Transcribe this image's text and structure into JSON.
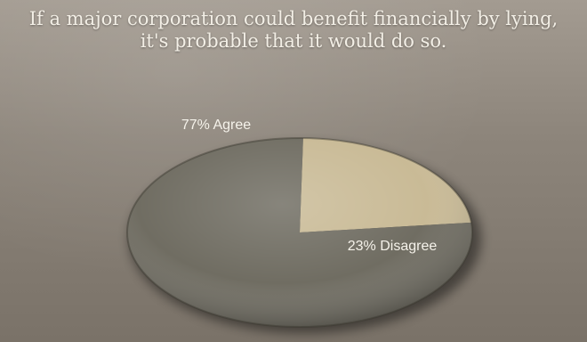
{
  "chart_data": {
    "type": "pie",
    "title": [
      "If a major corporation could benefit financially by lying,",
      "it's probable that it would do so."
    ],
    "slices": [
      {
        "name": "Agree",
        "value": 77,
        "label": "77% Agree",
        "color": "#6d6a5f"
      },
      {
        "name": "Disagree",
        "value": 23,
        "label": "23% Disagree",
        "color": "#c8b994"
      }
    ]
  }
}
